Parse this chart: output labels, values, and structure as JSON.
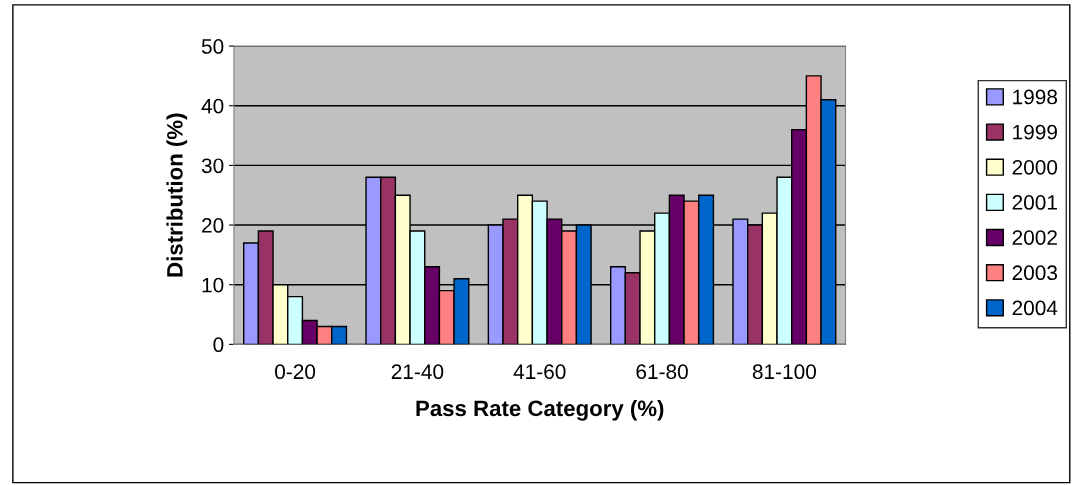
{
  "chart_data": {
    "type": "bar",
    "xlabel": "Pass Rate Category (%)",
    "ylabel": "Distribution (%)",
    "categories": [
      "0-20",
      "21-40",
      "41-60",
      "61-80",
      "81-100"
    ],
    "series": [
      {
        "name": "1998",
        "color": "#9999ff",
        "values": [
          17,
          28,
          20,
          13,
          21
        ]
      },
      {
        "name": "1999",
        "color": "#993366",
        "values": [
          19,
          28,
          21,
          12,
          20
        ]
      },
      {
        "name": "2000",
        "color": "#ffffcc",
        "values": [
          10,
          25,
          25,
          19,
          22
        ]
      },
      {
        "name": "2001",
        "color": "#ccffff",
        "values": [
          8,
          19,
          24,
          22,
          28
        ]
      },
      {
        "name": "2002",
        "color": "#660066",
        "values": [
          4,
          13,
          21,
          25,
          36
        ]
      },
      {
        "name": "2003",
        "color": "#ff8080",
        "values": [
          3,
          9,
          19,
          24,
          45
        ]
      },
      {
        "name": "2004",
        "color": "#0066cc",
        "values": [
          3,
          11,
          20,
          25,
          41
        ]
      }
    ],
    "ylim": [
      0,
      50
    ],
    "yticks": [
      0,
      10,
      20,
      30,
      40,
      50
    ],
    "grid": "y",
    "legend": "right"
  }
}
